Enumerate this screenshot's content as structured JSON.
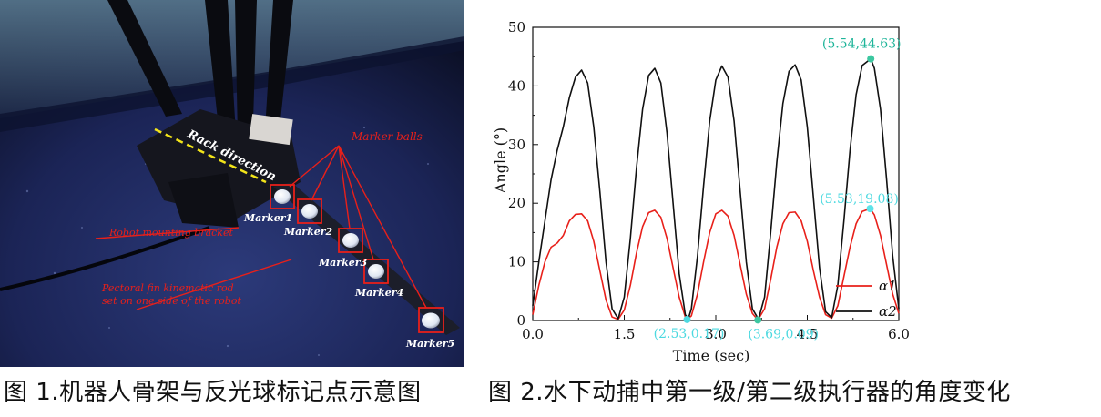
{
  "figure1": {
    "annotations": {
      "rack_direction": "Rack direction",
      "marker_balls": "Marker balls",
      "robot_bracket": "Robot mounting bracket",
      "pectoral_line1": "Pectoral fin kinematic rod",
      "pectoral_line2": "set on one side of the robot"
    },
    "markers": [
      "Marker1",
      "Marker2",
      "Marker3",
      "Marker4",
      "Marker5"
    ],
    "caption": "图 1.机器人骨架与反光球标记点示意图"
  },
  "figure2": {
    "caption": "图 2.水下动捕中第一级/第二级执行器的角度变化"
  },
  "chart_data": {
    "type": "line",
    "xlabel": "Time (sec)",
    "ylabel": "Angle (°)",
    "xlim": [
      0.0,
      6.0
    ],
    "ylim": [
      0,
      50
    ],
    "x_ticks": [
      "0.0",
      "1.5",
      "3.0",
      "4.5",
      "6.0"
    ],
    "y_ticks": [
      "0",
      "10",
      "20",
      "30",
      "40",
      "50"
    ],
    "grid": false,
    "legend_position": "bottom-right",
    "series": [
      {
        "name": "α1",
        "color": "#e8201a",
        "points": [
          [
            0.0,
            1.0
          ],
          [
            0.1,
            6
          ],
          [
            0.2,
            10
          ],
          [
            0.3,
            12.5
          ],
          [
            0.4,
            13.2
          ],
          [
            0.5,
            14.5
          ],
          [
            0.6,
            17
          ],
          [
            0.7,
            18.1
          ],
          [
            0.8,
            18.2
          ],
          [
            0.9,
            17
          ],
          [
            1.0,
            13.5
          ],
          [
            1.1,
            8.5
          ],
          [
            1.2,
            3.5
          ],
          [
            1.3,
            0.6
          ],
          [
            1.4,
            0.2
          ],
          [
            1.5,
            1.8
          ],
          [
            1.6,
            6
          ],
          [
            1.7,
            11.5
          ],
          [
            1.8,
            16
          ],
          [
            1.9,
            18.4
          ],
          [
            2.0,
            18.8
          ],
          [
            2.1,
            17.6
          ],
          [
            2.2,
            14
          ],
          [
            2.3,
            9
          ],
          [
            2.4,
            4
          ],
          [
            2.5,
            0.6
          ],
          [
            2.53,
            0.17
          ],
          [
            2.6,
            0.8
          ],
          [
            2.7,
            4.5
          ],
          [
            2.8,
            10
          ],
          [
            2.9,
            15
          ],
          [
            3.0,
            18.2
          ],
          [
            3.1,
            18.8
          ],
          [
            3.2,
            17.8
          ],
          [
            3.3,
            14.5
          ],
          [
            3.4,
            9.5
          ],
          [
            3.5,
            4.5
          ],
          [
            3.6,
            1.2
          ],
          [
            3.69,
            0.09
          ],
          [
            3.8,
            2
          ],
          [
            3.9,
            7
          ],
          [
            4.0,
            12.5
          ],
          [
            4.1,
            16.5
          ],
          [
            4.2,
            18.4
          ],
          [
            4.3,
            18.5
          ],
          [
            4.4,
            17
          ],
          [
            4.5,
            13.5
          ],
          [
            4.6,
            8.5
          ],
          [
            4.7,
            4
          ],
          [
            4.8,
            1
          ],
          [
            4.9,
            0.4
          ],
          [
            5.0,
            2.5
          ],
          [
            5.1,
            7.5
          ],
          [
            5.2,
            12.5
          ],
          [
            5.3,
            16.5
          ],
          [
            5.4,
            18.6
          ],
          [
            5.53,
            19.08
          ],
          [
            5.6,
            18
          ],
          [
            5.7,
            14.5
          ],
          [
            5.8,
            9.5
          ],
          [
            5.9,
            4.5
          ],
          [
            6.0,
            1.2
          ]
        ]
      },
      {
        "name": "α2",
        "color": "#111111",
        "points": [
          [
            0.0,
            2.5
          ],
          [
            0.1,
            10
          ],
          [
            0.2,
            17
          ],
          [
            0.3,
            24
          ],
          [
            0.4,
            29
          ],
          [
            0.5,
            33
          ],
          [
            0.6,
            38
          ],
          [
            0.7,
            41.5
          ],
          [
            0.8,
            42.7
          ],
          [
            0.9,
            40.5
          ],
          [
            1.0,
            33
          ],
          [
            1.1,
            22
          ],
          [
            1.2,
            10
          ],
          [
            1.3,
            2
          ],
          [
            1.4,
            0.3
          ],
          [
            1.5,
            4
          ],
          [
            1.6,
            14
          ],
          [
            1.7,
            26
          ],
          [
            1.8,
            36
          ],
          [
            1.9,
            41.8
          ],
          [
            2.0,
            43
          ],
          [
            2.1,
            40.5
          ],
          [
            2.2,
            32
          ],
          [
            2.3,
            20
          ],
          [
            2.4,
            8
          ],
          [
            2.5,
            1
          ],
          [
            2.55,
            0.3
          ],
          [
            2.6,
            2
          ],
          [
            2.7,
            11
          ],
          [
            2.8,
            23
          ],
          [
            2.9,
            34
          ],
          [
            3.0,
            41
          ],
          [
            3.1,
            43.4
          ],
          [
            3.2,
            41.5
          ],
          [
            3.3,
            34
          ],
          [
            3.4,
            22
          ],
          [
            3.5,
            10
          ],
          [
            3.6,
            2
          ],
          [
            3.7,
            0.2
          ],
          [
            3.8,
            4
          ],
          [
            3.9,
            15
          ],
          [
            4.0,
            27
          ],
          [
            4.1,
            37
          ],
          [
            4.2,
            42.5
          ],
          [
            4.3,
            43.6
          ],
          [
            4.4,
            41
          ],
          [
            4.5,
            33
          ],
          [
            4.6,
            21
          ],
          [
            4.7,
            9
          ],
          [
            4.8,
            1.5
          ],
          [
            4.9,
            0.5
          ],
          [
            5.0,
            6
          ],
          [
            5.1,
            17
          ],
          [
            5.2,
            29
          ],
          [
            5.3,
            38.5
          ],
          [
            5.4,
            43.5
          ],
          [
            5.54,
            44.63
          ],
          [
            5.6,
            43
          ],
          [
            5.7,
            36
          ],
          [
            5.8,
            24
          ],
          [
            5.9,
            11
          ],
          [
            6.0,
            2
          ]
        ]
      }
    ],
    "highlights": [
      {
        "label": "(5.54,44.63)",
        "x": 5.54,
        "y": 44.63,
        "point_color": "#3cc7a0",
        "label_color": "#1fb59a"
      },
      {
        "label": "(5.53,19.08)",
        "x": 5.53,
        "y": 19.08,
        "point_color": "#5ee3e8",
        "label_color": "#4cd9e0"
      },
      {
        "label": "(2.53,0.17)",
        "x": 2.53,
        "y": 0.17,
        "point_color": "#4cd9e0",
        "label_color": "#4cd9e0"
      },
      {
        "label": "(3.69,0.09)",
        "x": 3.69,
        "y": 0.09,
        "point_color": "#3cc7a0",
        "label_color": "#4cd9e0"
      }
    ]
  }
}
